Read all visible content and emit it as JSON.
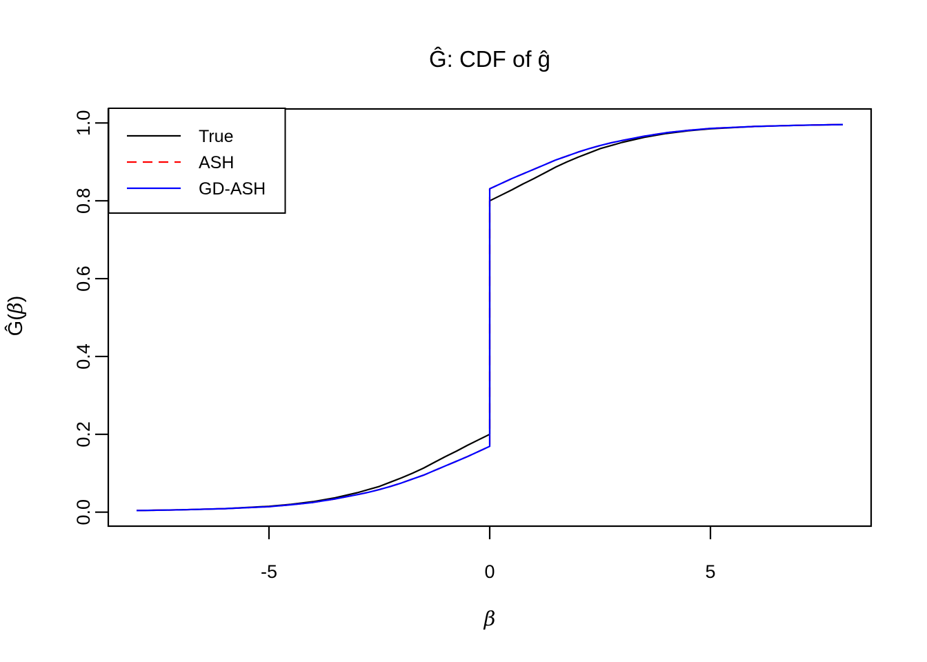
{
  "figure": {
    "background_color": "#FFFFFF",
    "axis_color": "#000000"
  },
  "chart_data": {
    "type": "line",
    "title": "Ĝ: CDF of ĝ",
    "xlabel": "β",
    "ylabel": "Ĝ(β)",
    "xlim": [
      -8.64,
      8.64
    ],
    "ylim": [
      -0.036,
      1.036
    ],
    "grid": false,
    "legend_position": "topleft",
    "xticks": {
      "values": [
        -5,
        0,
        5
      ],
      "labels": [
        "-5",
        "0",
        "5"
      ]
    },
    "yticks": {
      "values": [
        0.0,
        0.2,
        0.4,
        0.6,
        0.8,
        1.0
      ],
      "labels": [
        "0.0",
        "0.2",
        "0.4",
        "0.6",
        "0.8",
        "1.0"
      ]
    },
    "x": [
      -8,
      -7,
      -6,
      -5,
      -4.5,
      -4,
      -3.5,
      -3,
      -2.75,
      -2.5,
      -2.25,
      -2,
      -1.75,
      -1.5,
      -1.25,
      -1,
      -0.75,
      -0.5,
      -0.25,
      0,
      0,
      0.25,
      0.5,
      0.75,
      1,
      1.25,
      1.5,
      1.75,
      2,
      2.25,
      2.5,
      2.75,
      3,
      3.5,
      4,
      4.5,
      5,
      6,
      7,
      8
    ],
    "series": [
      {
        "name": "True",
        "color": "#000000",
        "dash": "solid",
        "values": [
          0.004,
          0.006,
          0.009,
          0.015,
          0.02,
          0.027,
          0.037,
          0.05,
          0.058,
          0.066,
          0.077,
          0.088,
          0.1,
          0.113,
          0.128,
          0.143,
          0.157,
          0.172,
          0.186,
          0.2,
          0.8,
          0.814,
          0.828,
          0.843,
          0.857,
          0.872,
          0.887,
          0.9,
          0.912,
          0.923,
          0.934,
          0.942,
          0.95,
          0.963,
          0.973,
          0.98,
          0.985,
          0.991,
          0.994,
          0.996
        ]
      },
      {
        "name": "ASH",
        "color": "#FF0000",
        "dash": "dashed",
        "values": [
          0.004,
          0.006,
          0.009,
          0.014,
          0.019,
          0.025,
          0.034,
          0.045,
          0.051,
          0.058,
          0.066,
          0.075,
          0.085,
          0.095,
          0.107,
          0.119,
          0.131,
          0.143,
          0.156,
          0.169,
          0.831,
          0.844,
          0.857,
          0.869,
          0.881,
          0.893,
          0.905,
          0.915,
          0.925,
          0.934,
          0.942,
          0.949,
          0.955,
          0.966,
          0.975,
          0.981,
          0.986,
          0.991,
          0.994,
          0.996
        ]
      },
      {
        "name": "GD-ASH",
        "color": "#0000FF",
        "dash": "solid",
        "values": [
          0.004,
          0.006,
          0.009,
          0.014,
          0.019,
          0.025,
          0.034,
          0.045,
          0.051,
          0.058,
          0.066,
          0.075,
          0.085,
          0.095,
          0.107,
          0.119,
          0.131,
          0.143,
          0.156,
          0.169,
          0.831,
          0.844,
          0.857,
          0.869,
          0.881,
          0.893,
          0.905,
          0.915,
          0.925,
          0.934,
          0.942,
          0.949,
          0.955,
          0.966,
          0.975,
          0.981,
          0.986,
          0.991,
          0.994,
          0.996
        ]
      }
    ],
    "legend": [
      {
        "label": "True",
        "color": "#000000",
        "dash": "solid"
      },
      {
        "label": "ASH",
        "color": "#FF0000",
        "dash": "dashed"
      },
      {
        "label": "GD-ASH",
        "color": "#0000FF",
        "dash": "solid"
      }
    ]
  }
}
